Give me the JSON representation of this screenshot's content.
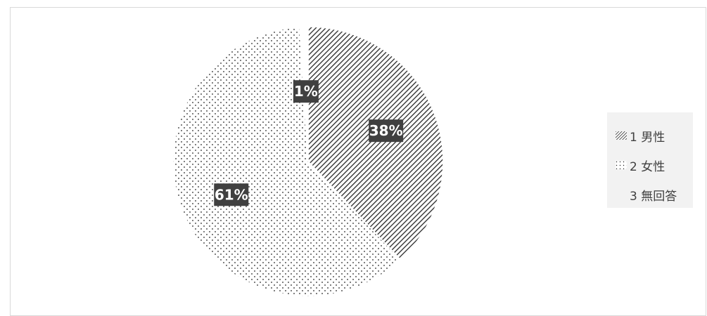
{
  "chart_data": {
    "type": "pie",
    "title": "",
    "categories": [
      "1 男性",
      "2 女性",
      "3 無回答"
    ],
    "values": [
      38,
      61,
      1
    ],
    "data_labels": [
      "38%",
      "61%",
      "1%"
    ],
    "legend_position": "right",
    "patterns": [
      "diagonal-hatch",
      "dots",
      "none"
    ],
    "colors": {
      "hatch": "#262626",
      "dots": "#262626",
      "background": "#ffffff",
      "label_box": "#404040",
      "label_text": "#ffffff",
      "legend_bg": "#f2f2f2"
    }
  },
  "legend": {
    "items": [
      {
        "label": "1 男性"
      },
      {
        "label": "2 女性"
      },
      {
        "label": "3 無回答"
      }
    ]
  }
}
